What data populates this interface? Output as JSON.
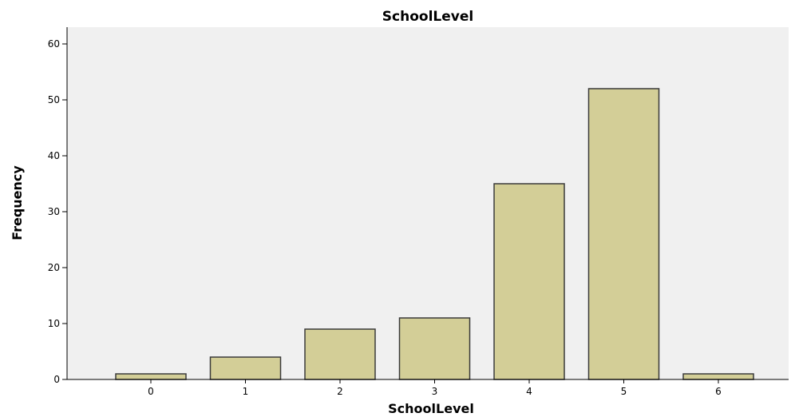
{
  "chart_data": {
    "type": "bar",
    "title": "SchoolLevel",
    "xlabel": "SchoolLevel",
    "ylabel": "Frequency",
    "categories": [
      "0",
      "1",
      "2",
      "3",
      "4",
      "5",
      "6"
    ],
    "values": [
      1,
      4,
      9,
      11,
      35,
      52,
      1
    ],
    "ylim": [
      0,
      63
    ],
    "yticks": [
      "0",
      "10",
      "20",
      "30",
      "40",
      "50",
      "60"
    ],
    "grid": false,
    "legend": "none",
    "colors": {
      "plot_background": "#f0f0f0",
      "bar_fill": "#d3ce97",
      "bar_stroke": "#3a3a3a",
      "axis": "#000000"
    }
  }
}
